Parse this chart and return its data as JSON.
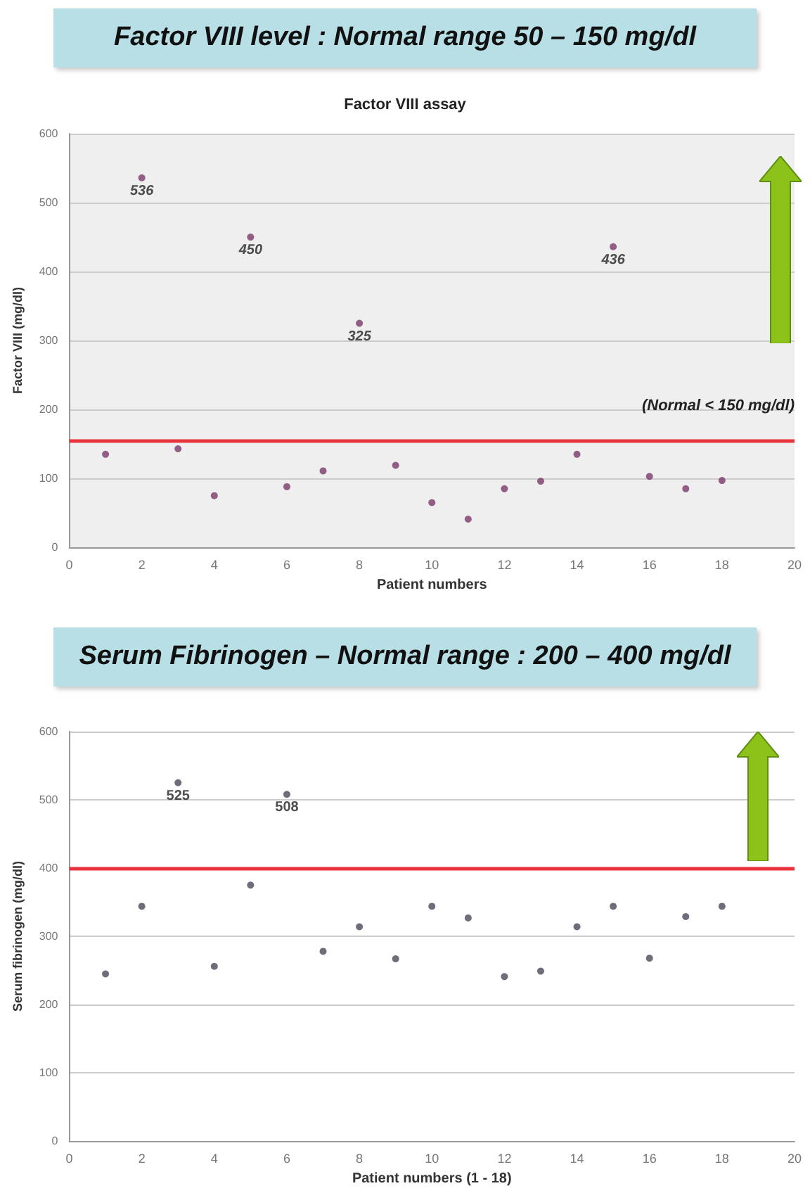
{
  "chart_data": [
    {
      "type": "scatter",
      "title": "Factor VIII level : Normal range 50 – 150 mg/dl",
      "subtitle": "Factor VIII assay",
      "xlabel": "Patient numbers",
      "ylabel": "Factor VIII (mg/dl)",
      "annotations": [
        "(Normal < 150 mg/dl)"
      ],
      "x": [
        1,
        2,
        3,
        4,
        5,
        6,
        7,
        8,
        9,
        10,
        11,
        12,
        13,
        14,
        15,
        16,
        17,
        18
      ],
      "series": [
        {
          "color": "#7a3a6a",
          "values": [
            135,
            536,
            143,
            75,
            450,
            88,
            111,
            325,
            119,
            65,
            41,
            85,
            96,
            135,
            436,
            103,
            85,
            97
          ],
          "value_labels": [
            null,
            "536",
            null,
            null,
            "450",
            null,
            null,
            "325",
            null,
            null,
            null,
            null,
            null,
            null,
            "436",
            null,
            null,
            null
          ]
        }
      ],
      "xlim": [
        0,
        20
      ],
      "xticks": [
        0,
        2,
        4,
        6,
        8,
        10,
        12,
        14,
        16,
        18,
        20
      ],
      "ylim": [
        0,
        600
      ],
      "yticks": [
        0,
        100,
        200,
        300,
        400,
        500,
        600
      ],
      "ref_lines": [
        {
          "axis": "y",
          "value": 155,
          "label": null,
          "color": "#e8343c"
        }
      ],
      "grid": "y",
      "marker": "circle"
    },
    {
      "type": "scatter",
      "title": "Serum Fibrinogen – Normal range : 200 – 400 mg/dl",
      "xlabel": "Patient numbers (1 - 18)",
      "ylabel": "Serum fibrinogen (mg/dl)",
      "x": [
        1,
        2,
        3,
        4,
        5,
        6,
        7,
        8,
        9,
        10,
        11,
        12,
        13,
        14,
        15,
        16,
        17,
        18
      ],
      "series": [
        {
          "color": "#4a4a5a",
          "values": [
            245,
            344,
            525,
            256,
            375,
            508,
            278,
            314,
            267,
            344,
            327,
            241,
            249,
            314,
            344,
            268,
            329,
            344
          ],
          "value_labels": [
            null,
            null,
            "525",
            null,
            null,
            "508",
            null,
            null,
            null,
            null,
            null,
            null,
            null,
            null,
            null,
            null,
            null,
            null
          ]
        }
      ],
      "xlim": [
        0,
        20
      ],
      "xticks": [
        0,
        2,
        4,
        6,
        8,
        10,
        12,
        14,
        16,
        18,
        20
      ],
      "ylim": [
        0,
        600
      ],
      "yticks": [
        0,
        100,
        200,
        300,
        400,
        500,
        600
      ],
      "ref_lines": [
        {
          "axis": "y",
          "value": 400,
          "label": null,
          "color": "#e8343c"
        }
      ],
      "grid": "y",
      "marker": "circle"
    }
  ]
}
